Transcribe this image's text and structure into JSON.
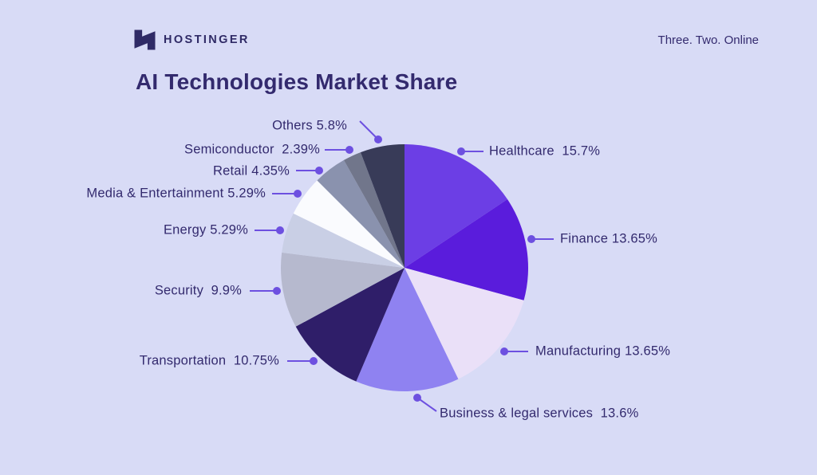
{
  "header": {
    "logo_text": "HOSTINGER",
    "tagline": "Three. Two. Online"
  },
  "title": "AI Technologies Market Share",
  "chart_data": {
    "type": "pie",
    "title": "AI Technologies Market Share",
    "unit": "%",
    "start_angle_deg": 0,
    "direction": "clockwise",
    "legend_position": "labels-with-leader-lines",
    "accent_color": "#6d50e0",
    "text_color": "#332a6e",
    "background_color": "#d8dbf6",
    "slices": [
      {
        "name": "Healthcare",
        "value": 15.7,
        "label": "Healthcare  15.7%",
        "color": "#6c3ee5"
      },
      {
        "name": "Finance",
        "value": 13.65,
        "label": "Finance 13.65%",
        "color": "#5a1cdc"
      },
      {
        "name": "Manufacturing",
        "value": 13.65,
        "label": "Manufacturing 13.65%",
        "color": "#eae0f8"
      },
      {
        "name": "Business & legal services",
        "value": 13.6,
        "label": "Business & legal services  13.6%",
        "color": "#8f82f1"
      },
      {
        "name": "Transportation",
        "value": 10.75,
        "label": "Transportation  10.75%",
        "color": "#2f1e69"
      },
      {
        "name": "Security",
        "value": 9.9,
        "label": "Security  9.9%",
        "color": "#b6b9ce"
      },
      {
        "name": "Energy",
        "value": 5.29,
        "label": "Energy 5.29%",
        "color": "#c9cfe5"
      },
      {
        "name": "Media & Entertainment",
        "value": 5.29,
        "label": "Media & Entertainment 5.29%",
        "color": "#fafbfe"
      },
      {
        "name": "Retail",
        "value": 4.35,
        "label": "Retail 4.35%",
        "color": "#8a92ae"
      },
      {
        "name": "Semiconductor",
        "value": 2.39,
        "label": "Semiconductor  2.39%",
        "color": "#71768b"
      },
      {
        "name": "Others",
        "value": 5.8,
        "label": "Others 5.8%",
        "color": "#383b58"
      }
    ]
  }
}
